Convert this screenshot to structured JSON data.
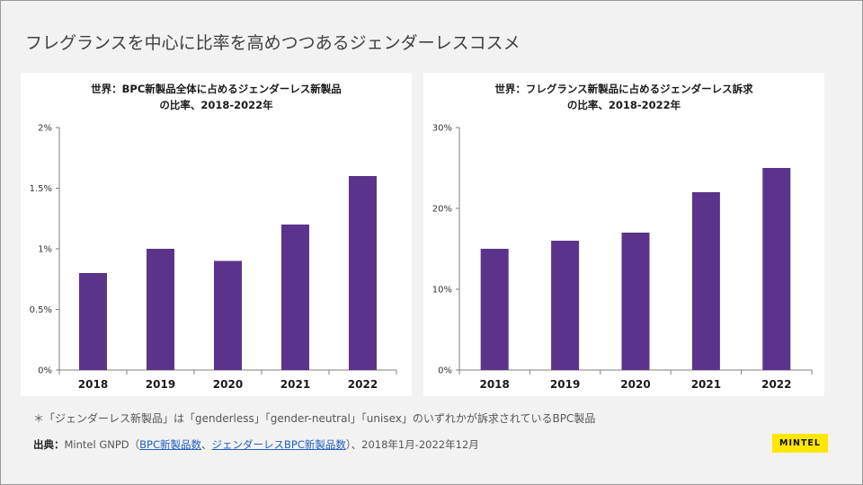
{
  "slide": {
    "title": "フレグランスを中心に比率を高めつつあるジェンダーレスコスメ"
  },
  "colors": {
    "bar": "#5c338a",
    "axis": "#7f7f7f",
    "background": "#f2f2f2",
    "panel": "#ffffff",
    "logo_bg": "#ffe600"
  },
  "chart_data": [
    {
      "type": "bar",
      "title_lines": [
        "世界：BPC新製品全体に占めるジェンダーレス新製品",
        "の比率、2018-2022年"
      ],
      "categories": [
        "2018",
        "2019",
        "2020",
        "2021",
        "2022"
      ],
      "values": [
        0.8,
        1.0,
        0.9,
        1.2,
        1.6
      ],
      "ylim": [
        0,
        2
      ],
      "yticks": [
        0,
        0.5,
        1,
        1.5,
        2
      ],
      "ytick_labels": [
        "0%",
        "0.5%",
        "1%",
        "1.5%",
        "2%"
      ],
      "xlabel": "",
      "ylabel": "",
      "grid": false
    },
    {
      "type": "bar",
      "title_lines": [
        "世界：フレグランス新製品に占めるジェンダーレス訴求",
        "の比率、2018-2022年"
      ],
      "categories": [
        "2018",
        "2019",
        "2020",
        "2021",
        "2022"
      ],
      "values": [
        15,
        16,
        17,
        22,
        25
      ],
      "ylim": [
        0,
        30
      ],
      "yticks": [
        0,
        10,
        20,
        30
      ],
      "ytick_labels": [
        "0%",
        "10%",
        "20%",
        "30%"
      ],
      "xlabel": "",
      "ylabel": "",
      "grid": false
    }
  ],
  "footer": {
    "note": "＊「ジェンダーレス新製品」は「genderless」「gender-neutral」「unisex」のいずれかが訴求されているBPC製品",
    "source_label": "出典：",
    "source_prefix": "Mintel GNPD（",
    "source_link1": "BPC新製品数",
    "source_sep": "、",
    "source_link2": "ジェンダーレスBPC新製品数",
    "source_suffix": "）、2018年1月-2022年12月"
  },
  "logo": {
    "text": "MINTEL"
  }
}
